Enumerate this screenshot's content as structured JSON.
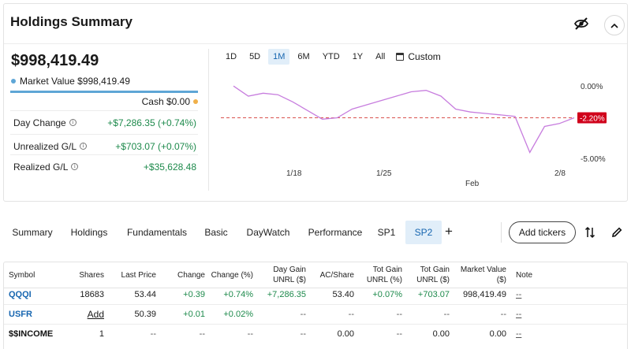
{
  "summary": {
    "title": "Holdings Summary",
    "total_value": "$998,419.49",
    "market_value_label": "Market Value $998,419.49",
    "cash_label": "Cash $0.00",
    "metrics": [
      {
        "label": "Day Change",
        "value": "+$7,286.35 (+0.74%)"
      },
      {
        "label": "Unrealized G/L",
        "value": "+$703.07 (+0.07%)"
      },
      {
        "label": "Realized G/L",
        "value": "+$35,628.48"
      }
    ],
    "colors": {
      "market_value": "#5ea6d6",
      "cash": "#f0b04a",
      "gain": "#1e8a4c"
    }
  },
  "chart": {
    "ranges": [
      "1D",
      "5D",
      "1M",
      "6M",
      "YTD",
      "1Y",
      "All"
    ],
    "active_range": "1M",
    "custom_label": "Custom",
    "x_ticks": [
      "1/18",
      "1/25",
      "Feb",
      "2/8"
    ],
    "y_ticks": [
      "0.00%",
      "-5.00%"
    ],
    "current_label": "-2.20%",
    "current_value": -2.2
  },
  "chart_data": {
    "type": "line",
    "x_ticks": [
      "1/18",
      "1/25",
      "Feb",
      "2/8"
    ],
    "y_ticks": [
      "0.00%",
      "-5.00%"
    ],
    "ylim": [
      -5.5,
      0.5
    ],
    "series": [
      {
        "values": [
          0.0,
          -0.7,
          -0.5,
          -0.6,
          -1.1,
          -1.7,
          -2.3,
          -2.2,
          -1.6,
          -1.3,
          -1.0,
          -0.7,
          -0.4,
          -0.3,
          -0.7,
          -1.6,
          -1.8,
          -1.9,
          -2.0,
          -2.1,
          -4.6,
          -2.8,
          -2.6,
          -2.2
        ],
        "color": "#c77dde"
      }
    ],
    "reference_line": {
      "value": -2.2,
      "style": "dashed",
      "color": "#d9534f"
    }
  },
  "tabs": {
    "items": [
      "Summary",
      "Holdings",
      "Fundamentals",
      "Basic",
      "DayWatch",
      "Performance",
      "SP1",
      "SP2"
    ],
    "active": "SP2",
    "add_tickers_label": "Add tickers",
    "plus_label": "+"
  },
  "table": {
    "headers": {
      "symbol": "Symbol",
      "shares": "Shares",
      "last_price": "Last Price",
      "change": "Change",
      "change_pct": "Change (%)",
      "day_gain_1": "Day Gain",
      "day_gain_2": "UNRL ($)",
      "ac_share": "AC/Share",
      "tot_gain_pct_1": "Tot Gain",
      "tot_gain_pct_2": "UNRL (%)",
      "tot_gain_1": "Tot Gain",
      "tot_gain_2": "UNRL ($)",
      "mv_1": "Market Value",
      "mv_2": "($)",
      "note": "Note"
    },
    "rows": [
      {
        "symbol": "QQQI",
        "shares": "18683",
        "last_price": "53.44",
        "change": "+0.39",
        "change_pct": "+0.74%",
        "day_gain": "+7,286.35",
        "ac_share": "53.40",
        "tot_gain_pct": "+0.07%",
        "tot_gain": "+703.07",
        "market_value": "998,419.49",
        "note": "--"
      },
      {
        "symbol": "USFR",
        "shares": "Add",
        "last_price": "50.39",
        "change": "+0.01",
        "change_pct": "+0.02%",
        "day_gain": "--",
        "ac_share": "--",
        "tot_gain_pct": "--",
        "tot_gain": "--",
        "market_value": "--",
        "note": "--"
      },
      {
        "symbol": "$$INCOME",
        "shares": "1",
        "last_price": "--",
        "change": "--",
        "change_pct": "--",
        "day_gain": "--",
        "ac_share": "0.00",
        "tot_gain_pct": "--",
        "tot_gain": "0.00",
        "market_value": "0.00",
        "note": "--"
      }
    ]
  }
}
